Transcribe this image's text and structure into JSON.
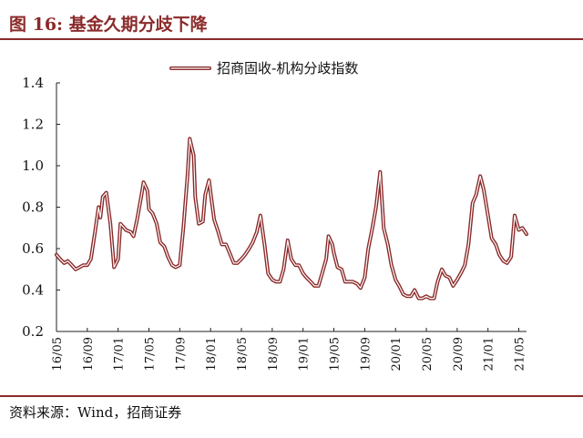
{
  "figure": {
    "title": "图 16:  基金久期分歧下降",
    "source": "资料来源：Wind，招商证券"
  },
  "colors": {
    "accent": "#8b2a2a",
    "series_outer": "#8b2a2a",
    "series_inner": "#ffffff"
  },
  "chart_data": {
    "type": "line",
    "title": "",
    "xlabel": "",
    "ylabel": "",
    "ylim": [
      0.2,
      1.4
    ],
    "yticks": [
      "1.4",
      "1.2",
      "1.0",
      "0.8",
      "0.6",
      "0.4",
      "0.2"
    ],
    "xlim": [
      "2016-05",
      "2021-06"
    ],
    "xticks": [
      "16/05",
      "16/09",
      "17/01",
      "17/05",
      "17/09",
      "18/01",
      "18/05",
      "18/09",
      "19/01",
      "19/05",
      "19/09",
      "20/01",
      "20/05",
      "20/09",
      "21/01",
      "21/05"
    ],
    "legend": "top-center",
    "grid": false,
    "series": [
      {
        "name": "招商固收-机构分歧指数",
        "points": [
          [
            "2016-05",
            0.57
          ],
          [
            "2016-05-15",
            0.55
          ],
          [
            "2016-06",
            0.53
          ],
          [
            "2016-06-15",
            0.54
          ],
          [
            "2016-07",
            0.52
          ],
          [
            "2016-07-15",
            0.5
          ],
          [
            "2016-08",
            0.51
          ],
          [
            "2016-08-15",
            0.52
          ],
          [
            "2016-09",
            0.52
          ],
          [
            "2016-09-15",
            0.55
          ],
          [
            "2016-10",
            0.68
          ],
          [
            "2016-10-15",
            0.8
          ],
          [
            "2016-10-22",
            0.75
          ],
          [
            "2016-11",
            0.85
          ],
          [
            "2016-11-15",
            0.87
          ],
          [
            "2016-12",
            0.72
          ],
          [
            "2016-12-15",
            0.51
          ],
          [
            "2017-01",
            0.55
          ],
          [
            "2017-01-10",
            0.72
          ],
          [
            "2017-01-25",
            0.7
          ],
          [
            "2017-02",
            0.69
          ],
          [
            "2017-02-20",
            0.68
          ],
          [
            "2017-03",
            0.66
          ],
          [
            "2017-03-15",
            0.74
          ],
          [
            "2017-04",
            0.85
          ],
          [
            "2017-04-10",
            0.92
          ],
          [
            "2017-04-25",
            0.88
          ],
          [
            "2017-05",
            0.79
          ],
          [
            "2017-05-15",
            0.77
          ],
          [
            "2017-06",
            0.72
          ],
          [
            "2017-06-15",
            0.63
          ],
          [
            "2017-07",
            0.61
          ],
          [
            "2017-07-15",
            0.56
          ],
          [
            "2017-08",
            0.52
          ],
          [
            "2017-08-15",
            0.51
          ],
          [
            "2017-09",
            0.52
          ],
          [
            "2017-09-15",
            0.7
          ],
          [
            "2017-10",
            0.95
          ],
          [
            "2017-10-10",
            1.13
          ],
          [
            "2017-10-25",
            1.05
          ],
          [
            "2017-11",
            0.85
          ],
          [
            "2017-11-15",
            0.72
          ],
          [
            "2017-12",
            0.73
          ],
          [
            "2017-12-10",
            0.86
          ],
          [
            "2017-12-25",
            0.93
          ],
          [
            "2018-01",
            0.87
          ],
          [
            "2018-01-15",
            0.74
          ],
          [
            "2018-02",
            0.68
          ],
          [
            "2018-02-15",
            0.62
          ],
          [
            "2018-03",
            0.62
          ],
          [
            "2018-03-15",
            0.58
          ],
          [
            "2018-04",
            0.53
          ],
          [
            "2018-04-15",
            0.53
          ],
          [
            "2018-05",
            0.55
          ],
          [
            "2018-05-15",
            0.57
          ],
          [
            "2018-06",
            0.6
          ],
          [
            "2018-06-15",
            0.63
          ],
          [
            "2018-07",
            0.68
          ],
          [
            "2018-07-15",
            0.76
          ],
          [
            "2018-08",
            0.62
          ],
          [
            "2018-08-15",
            0.48
          ],
          [
            "2018-09",
            0.45
          ],
          [
            "2018-09-15",
            0.44
          ],
          [
            "2018-10",
            0.44
          ],
          [
            "2018-10-15",
            0.5
          ],
          [
            "2018-11",
            0.64
          ],
          [
            "2018-11-15",
            0.55
          ],
          [
            "2018-12",
            0.52
          ],
          [
            "2018-12-15",
            0.52
          ],
          [
            "2019-01",
            0.48
          ],
          [
            "2019-01-15",
            0.46
          ],
          [
            "2019-02",
            0.44
          ],
          [
            "2019-02-15",
            0.42
          ],
          [
            "2019-03",
            0.42
          ],
          [
            "2019-03-15",
            0.48
          ],
          [
            "2019-04",
            0.55
          ],
          [
            "2019-04-10",
            0.66
          ],
          [
            "2019-04-25",
            0.62
          ],
          [
            "2019-05",
            0.58
          ],
          [
            "2019-05-15",
            0.51
          ],
          [
            "2019-06",
            0.5
          ],
          [
            "2019-06-15",
            0.44
          ],
          [
            "2019-07",
            0.44
          ],
          [
            "2019-07-15",
            0.44
          ],
          [
            "2019-08",
            0.43
          ],
          [
            "2019-08-15",
            0.41
          ],
          [
            "2019-09",
            0.46
          ],
          [
            "2019-09-15",
            0.6
          ],
          [
            "2019-10",
            0.7
          ],
          [
            "2019-10-15",
            0.8
          ],
          [
            "2019-11",
            0.97
          ],
          [
            "2019-11-15",
            0.7
          ],
          [
            "2019-12",
            0.62
          ],
          [
            "2019-12-15",
            0.52
          ],
          [
            "2020-01",
            0.45
          ],
          [
            "2020-01-15",
            0.42
          ],
          [
            "2020-02",
            0.38
          ],
          [
            "2020-02-15",
            0.37
          ],
          [
            "2020-03",
            0.37
          ],
          [
            "2020-03-15",
            0.4
          ],
          [
            "2020-04",
            0.36
          ],
          [
            "2020-04-15",
            0.36
          ],
          [
            "2020-05",
            0.37
          ],
          [
            "2020-05-15",
            0.36
          ],
          [
            "2020-06",
            0.36
          ],
          [
            "2020-06-15",
            0.44
          ],
          [
            "2020-07",
            0.5
          ],
          [
            "2020-07-15",
            0.47
          ],
          [
            "2020-08",
            0.46
          ],
          [
            "2020-08-15",
            0.42
          ],
          [
            "2020-09",
            0.45
          ],
          [
            "2020-09-15",
            0.48
          ],
          [
            "2020-10",
            0.52
          ],
          [
            "2020-10-15",
            0.62
          ],
          [
            "2020-11",
            0.82
          ],
          [
            "2020-11-15",
            0.86
          ],
          [
            "2020-12",
            0.95
          ],
          [
            "2020-12-15",
            0.88
          ],
          [
            "2021-01",
            0.76
          ],
          [
            "2021-01-15",
            0.65
          ],
          [
            "2021-02",
            0.62
          ],
          [
            "2021-02-15",
            0.57
          ],
          [
            "2021-03",
            0.54
          ],
          [
            "2021-03-15",
            0.53
          ],
          [
            "2021-04",
            0.56
          ],
          [
            "2021-04-15",
            0.76
          ],
          [
            "2021-05",
            0.69
          ],
          [
            "2021-05-15",
            0.7
          ],
          [
            "2021-06",
            0.67
          ]
        ]
      }
    ]
  }
}
